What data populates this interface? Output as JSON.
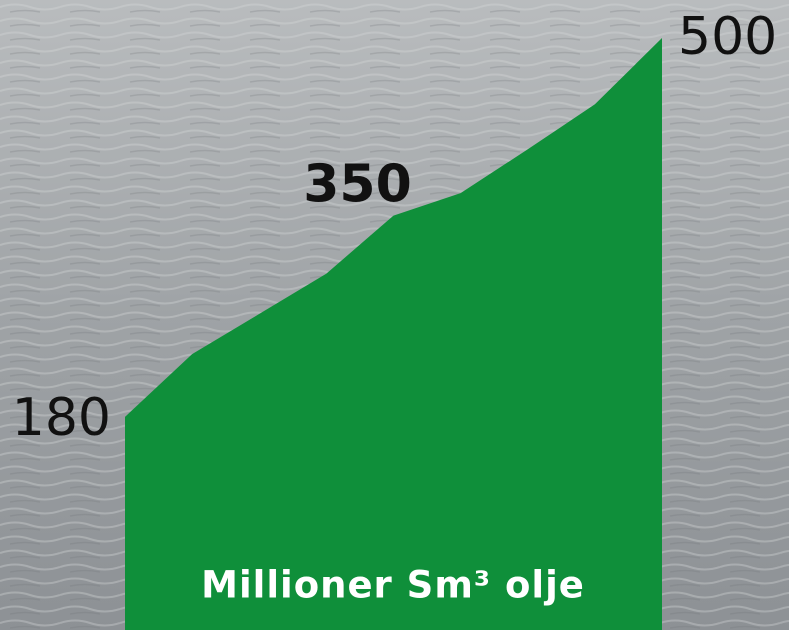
{
  "chart_data": {
    "type": "area",
    "title": "Millioner Sm³ olje",
    "categories": [
      null,
      null,
      null,
      null,
      null,
      null,
      null,
      null,
      null
    ],
    "values": [
      180,
      233,
      267,
      301,
      350,
      369,
      406,
      444,
      500
    ],
    "value_labels": [
      "180",
      null,
      null,
      null,
      "350",
      null,
      null,
      null,
      "500"
    ],
    "color": "#0f8f3a"
  }
}
